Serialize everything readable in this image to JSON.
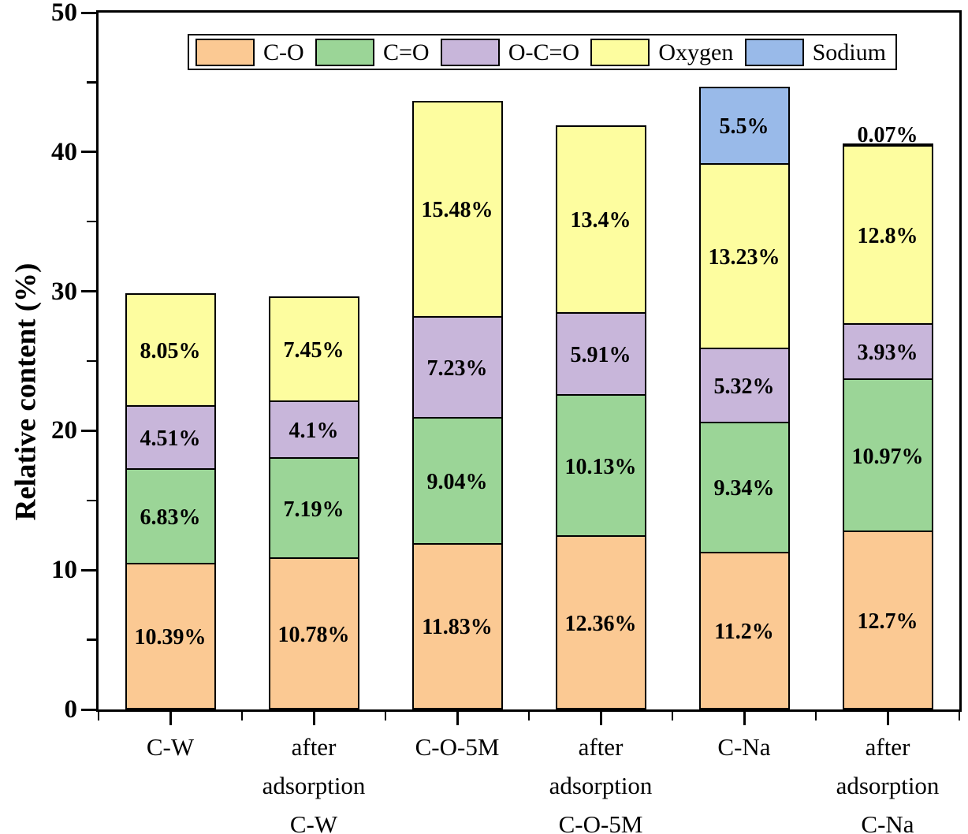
{
  "figure": {
    "ylabel": "Relative content (%)"
  },
  "chart_data": {
    "type": "bar",
    "stacked": true,
    "title": "",
    "xlabel": "",
    "ylabel": "Relative content (%)",
    "ylim": [
      0,
      50
    ],
    "yticks_major": [
      0,
      10,
      20,
      30,
      40,
      50
    ],
    "ytick_labels": [
      "0",
      "10",
      "20",
      "30",
      "40",
      "50"
    ],
    "yticks_minor": [
      5,
      15,
      25,
      35,
      45
    ],
    "grid": false,
    "legend_position": "top-inside",
    "categories": [
      "C-W",
      "after adsorption C-W",
      "C-O-5M",
      "after adsorption C-O-5M",
      "C-Na",
      "after adsorption C-Na"
    ],
    "category_label_lines": [
      [
        "C-W"
      ],
      [
        "after",
        "adsorption",
        "C-W"
      ],
      [
        "C-O-5M"
      ],
      [
        "after",
        "adsorption",
        "C-O-5M"
      ],
      [
        "C-Na"
      ],
      [
        "after",
        "adsorption",
        "C-Na"
      ]
    ],
    "series": [
      {
        "name": "C-O",
        "color": "#FBC993",
        "values": [
          10.39,
          10.78,
          11.83,
          12.36,
          11.2,
          12.7
        ],
        "labels": [
          "10.39%",
          "10.78%",
          "11.83%",
          "12.36%",
          "11.2%",
          "12.7%"
        ]
      },
      {
        "name": "C=O",
        "color": "#9BD597",
        "values": [
          6.83,
          7.19,
          9.04,
          10.13,
          9.34,
          10.97
        ],
        "labels": [
          "6.83%",
          "7.19%",
          "9.04%",
          "10.13%",
          "9.34%",
          "10.97%"
        ]
      },
      {
        "name": "O-C=O",
        "color": "#C8B6DA",
        "values": [
          4.51,
          4.1,
          7.23,
          5.91,
          5.32,
          3.93
        ],
        "labels": [
          "4.51%",
          "4.1%",
          "7.23%",
          "5.91%",
          "5.32%",
          "3.93%"
        ]
      },
      {
        "name": "Oxygen",
        "color": "#FDFD9F",
        "values": [
          8.05,
          7.45,
          15.48,
          13.4,
          13.23,
          12.8
        ],
        "labels": [
          "8.05%",
          "7.45%",
          "15.48%",
          "13.4%",
          "13.23%",
          "12.8%"
        ]
      },
      {
        "name": "Sodium",
        "color": "#99BAE9",
        "values": [
          0,
          0,
          0,
          0,
          5.5,
          0.07
        ],
        "labels": [
          "",
          "",
          "",
          "",
          "5.5%",
          "0.07%"
        ]
      }
    ]
  }
}
